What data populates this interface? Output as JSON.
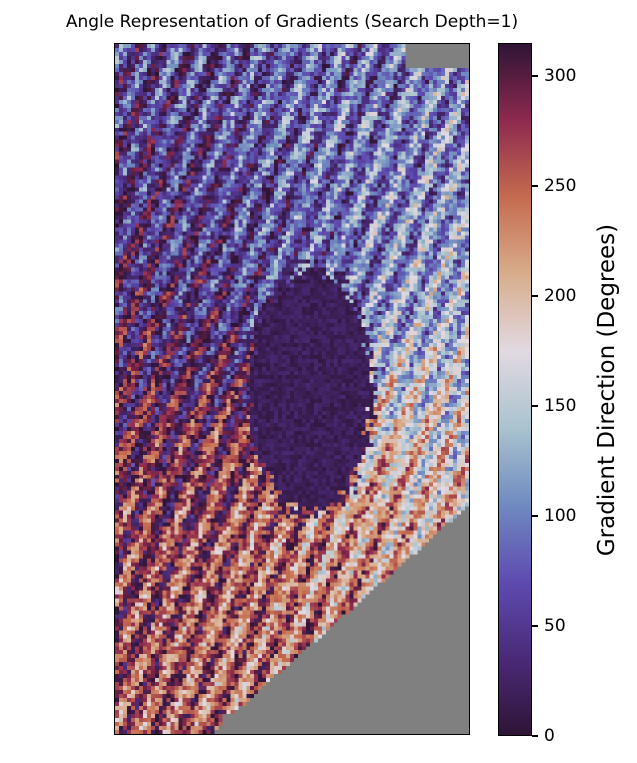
{
  "chart_data": {
    "type": "heatmap",
    "title": "Angle Representation of Gradients (Search Depth=1)",
    "xlabel": "",
    "ylabel": "",
    "colorbar": {
      "label": "Gradient Direction (Degrees)",
      "ticks": [
        0,
        50,
        100,
        150,
        200,
        250,
        300
      ],
      "vmin": 0,
      "vmax": 315,
      "colormap": "twilight_shifted",
      "colors": [
        "#2f1436",
        "#4a2a78",
        "#5e4bb0",
        "#6f8ac0",
        "#a9c3cf",
        "#e2d9e2",
        "#d8ad8c",
        "#c56b4f",
        "#8e2a4f",
        "#2f1436"
      ]
    },
    "masked_color": "#808080",
    "axes_visible": false,
    "grid": false,
    "legend": "none"
  }
}
